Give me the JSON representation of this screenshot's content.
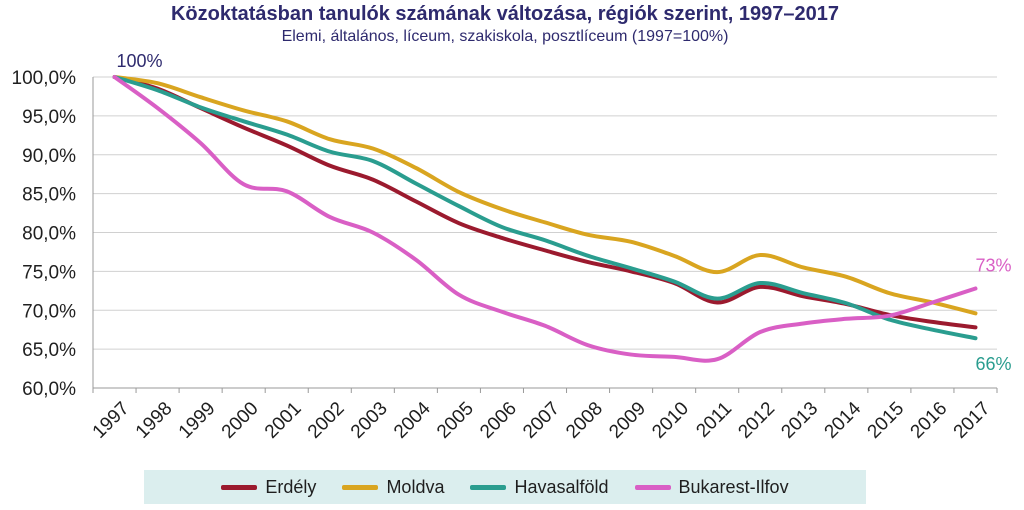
{
  "chart_data": {
    "type": "line",
    "title": "Közoktatásban tanulók számának változása, régiók szerint, 1997–2017",
    "subtitle": "Elemi, általános, líceum, szakiskola, posztlíceum (1997=100%)",
    "x": [
      "1997",
      "1998",
      "1999",
      "2000",
      "2001",
      "2002",
      "2003",
      "2004",
      "2005",
      "2006",
      "2007",
      "2008",
      "2009",
      "2010",
      "2011",
      "2012",
      "2013",
      "2014",
      "2015",
      "2016",
      "2017"
    ],
    "ylim": [
      60,
      100
    ],
    "yticks": [
      "60,0%",
      "65,0%",
      "70,0%",
      "75,0%",
      "80,0%",
      "85,0%",
      "90,0%",
      "95,0%",
      "100,0%"
    ],
    "grid": "horizontal",
    "legend_position": "bottom",
    "series": [
      {
        "name": "Erdély",
        "color": "#9b1a2e",
        "values": [
          100,
          98.5,
          96,
          93.5,
          91.2,
          88.6,
          86.8,
          84.0,
          81.2,
          79.3,
          77.7,
          76.2,
          75.0,
          73.5,
          71.0,
          73.0,
          71.8,
          70.8,
          69.4,
          68.5,
          67.8
        ]
      },
      {
        "name": "Moldva",
        "color": "#d9a520",
        "values": [
          100,
          99.2,
          97.4,
          95.7,
          94.3,
          92.0,
          90.8,
          88.3,
          85.2,
          83.0,
          81.3,
          79.7,
          78.8,
          77.0,
          74.9,
          77.1,
          75.5,
          74.3,
          72.2,
          71.0,
          69.6
        ]
      },
      {
        "name": "Havasalföld",
        "color": "#2a9d8f",
        "values": [
          100,
          98.3,
          96.1,
          94.3,
          92.6,
          90.4,
          89.2,
          86.3,
          83.4,
          80.7,
          79.0,
          77.0,
          75.4,
          73.7,
          71.5,
          73.5,
          72.2,
          70.9,
          68.8,
          67.5,
          66.4
        ]
      },
      {
        "name": "Bukarest-Ilfov",
        "color": "#d95fc5",
        "values": [
          100,
          96.0,
          91.5,
          86.2,
          85.3,
          82.0,
          80.0,
          76.5,
          72.0,
          69.8,
          68.0,
          65.5,
          64.3,
          64.0,
          63.7,
          67.2,
          68.3,
          68.9,
          69.3,
          71.0,
          72.8
        ]
      }
    ],
    "annotations": [
      {
        "text": "100%",
        "series": 0,
        "index": 0,
        "color": "#2e2a6e"
      },
      {
        "text": "73%",
        "series": 3,
        "index": 20,
        "color": "#d95fc5"
      },
      {
        "text": "66%",
        "series": 2,
        "index": 20,
        "color": "#2a9d8f"
      }
    ]
  }
}
